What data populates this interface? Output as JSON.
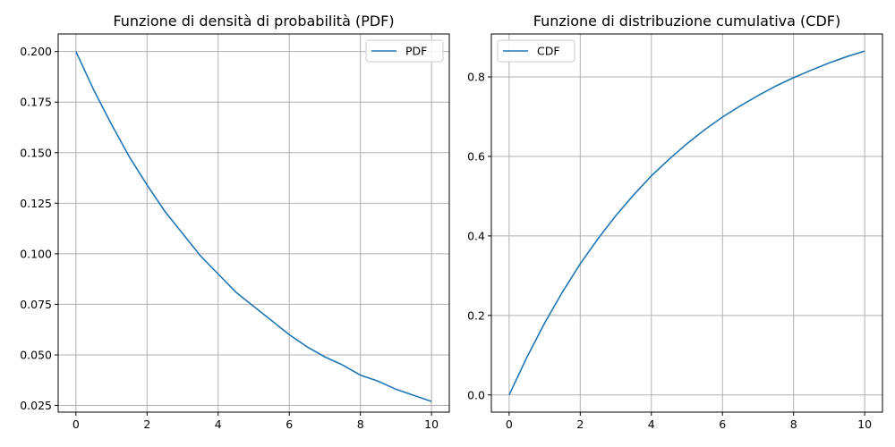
{
  "chart_data": [
    {
      "type": "line",
      "title": "Funzione di densità di probabilità (PDF)",
      "xlabel": "",
      "ylabel": "",
      "xlim": [
        -0.5,
        10.5
      ],
      "ylim": [
        0.0217,
        0.2087
      ],
      "xticks": [
        0,
        2,
        4,
        6,
        8,
        10
      ],
      "xtick_labels": [
        "0",
        "2",
        "4",
        "6",
        "8",
        "10"
      ],
      "yticks": [
        0.025,
        0.05,
        0.075,
        0.1,
        0.125,
        0.15,
        0.175,
        0.2
      ],
      "ytick_labels": [
        "0.025",
        "0.050",
        "0.075",
        "0.100",
        "0.125",
        "0.150",
        "0.175",
        "0.200"
      ],
      "grid": true,
      "legend": "upper right",
      "series": [
        {
          "name": "PDF",
          "color": "#1f77b4",
          "x": [
            0,
            0.5,
            1,
            1.5,
            2,
            2.5,
            3,
            3.5,
            4,
            4.5,
            5,
            5.5,
            6,
            6.5,
            7,
            7.5,
            8,
            8.5,
            9,
            9.5,
            10
          ],
          "y": [
            0.2,
            0.181,
            0.164,
            0.148,
            0.134,
            0.121,
            0.11,
            0.099,
            0.09,
            0.081,
            0.074,
            0.067,
            0.06,
            0.054,
            0.049,
            0.045,
            0.04,
            0.037,
            0.033,
            0.03,
            0.027
          ]
        }
      ]
    },
    {
      "type": "line",
      "title": "Funzione di distribuzione cumulativa (CDF)",
      "xlabel": "",
      "ylabel": "",
      "xlim": [
        -0.5,
        10.5
      ],
      "ylim": [
        -0.0432,
        0.9079
      ],
      "xticks": [
        0,
        2,
        4,
        6,
        8,
        10
      ],
      "xtick_labels": [
        "0",
        "2",
        "4",
        "6",
        "8",
        "10"
      ],
      "yticks": [
        0,
        0.2,
        0.4,
        0.6,
        0.8
      ],
      "ytick_labels": [
        "0.0",
        "0.2",
        "0.4",
        "0.6",
        "0.8"
      ],
      "grid": true,
      "legend": "upper left",
      "series": [
        {
          "name": "CDF",
          "color": "#1f77b4",
          "x": [
            0,
            0.5,
            1,
            1.5,
            2,
            2.5,
            3,
            3.5,
            4,
            4.5,
            5,
            5.5,
            6,
            6.5,
            7,
            7.5,
            8,
            8.5,
            9,
            9.5,
            10
          ],
          "y": [
            0,
            0.095,
            0.181,
            0.259,
            0.33,
            0.393,
            0.451,
            0.503,
            0.551,
            0.593,
            0.632,
            0.667,
            0.699,
            0.727,
            0.753,
            0.777,
            0.798,
            0.817,
            0.835,
            0.851,
            0.865
          ]
        }
      ]
    }
  ]
}
